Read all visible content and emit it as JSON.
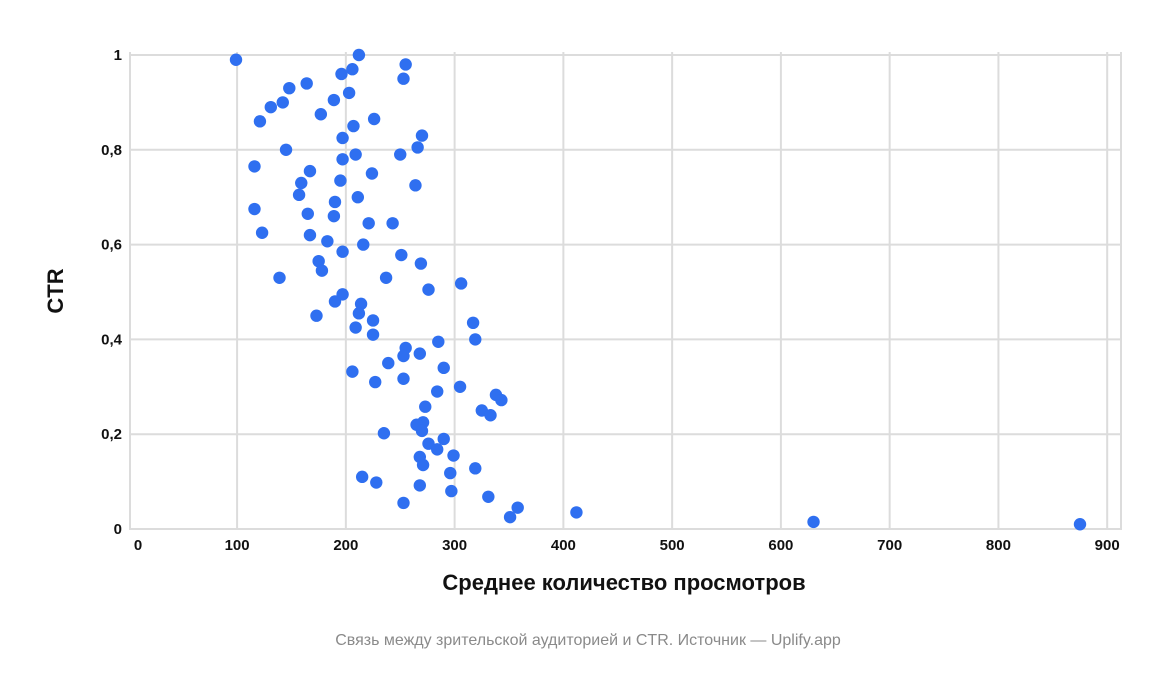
{
  "caption": "Связь между зрительской аудиторией и CTR. Источник — Uplify.app",
  "colors": {
    "point": "#2f6ff0",
    "grid": "#dcdcdc",
    "text": "#111111",
    "caption": "#8a8a8a"
  },
  "chart_data": {
    "type": "scatter",
    "title": "",
    "xlabel": "Среднее количество просмотров",
    "ylabel": "CTR",
    "xlim": [
      0,
      900
    ],
    "ylim": [
      0,
      1
    ],
    "grid": true,
    "x_ticks": [
      0,
      100,
      200,
      300,
      400,
      500,
      600,
      700,
      800,
      900
    ],
    "x_tick_labels": [
      "0",
      "100",
      "200",
      "300",
      "400",
      "500",
      "600",
      "700",
      "800",
      "900"
    ],
    "y_ticks": [
      0,
      0.2,
      0.4,
      0.6,
      0.8,
      1
    ],
    "y_tick_labels": [
      "0",
      "0,2",
      "0,4",
      "0,6",
      "0,8",
      "1"
    ],
    "series": [
      {
        "points": [
          [
            99,
            0.99
          ],
          [
            212,
            1.0
          ],
          [
            255,
            0.98
          ],
          [
            206,
            0.97
          ],
          [
            196,
            0.96
          ],
          [
            253,
            0.95
          ],
          [
            164,
            0.94
          ],
          [
            148,
            0.93
          ],
          [
            203,
            0.92
          ],
          [
            189,
            0.905
          ],
          [
            142,
            0.9
          ],
          [
            131,
            0.89
          ],
          [
            177,
            0.875
          ],
          [
            226,
            0.865
          ],
          [
            121,
            0.86
          ],
          [
            207,
            0.85
          ],
          [
            270,
            0.83
          ],
          [
            197,
            0.825
          ],
          [
            266,
            0.805
          ],
          [
            145,
            0.8
          ],
          [
            250,
            0.79
          ],
          [
            209,
            0.79
          ],
          [
            197,
            0.78
          ],
          [
            116,
            0.765
          ],
          [
            167,
            0.755
          ],
          [
            224,
            0.75
          ],
          [
            195,
            0.735
          ],
          [
            159,
            0.73
          ],
          [
            264,
            0.725
          ],
          [
            157,
            0.705
          ],
          [
            211,
            0.7
          ],
          [
            190,
            0.69
          ],
          [
            116,
            0.675
          ],
          [
            165,
            0.665
          ],
          [
            189,
            0.66
          ],
          [
            221,
            0.645
          ],
          [
            243,
            0.645
          ],
          [
            123,
            0.625
          ],
          [
            167,
            0.62
          ],
          [
            183,
            0.607
          ],
          [
            216,
            0.6
          ],
          [
            197,
            0.585
          ],
          [
            251,
            0.578
          ],
          [
            175,
            0.565
          ],
          [
            269,
            0.56
          ],
          [
            178,
            0.545
          ],
          [
            139,
            0.53
          ],
          [
            237,
            0.53
          ],
          [
            306,
            0.518
          ],
          [
            276,
            0.505
          ],
          [
            197,
            0.495
          ],
          [
            190,
            0.48
          ],
          [
            214,
            0.475
          ],
          [
            212,
            0.455
          ],
          [
            173,
            0.45
          ],
          [
            317,
            0.435
          ],
          [
            225,
            0.44
          ],
          [
            209,
            0.425
          ],
          [
            225,
            0.41
          ],
          [
            319,
            0.4
          ],
          [
            285,
            0.395
          ],
          [
            255,
            0.382
          ],
          [
            253,
            0.365
          ],
          [
            268,
            0.37
          ],
          [
            239,
            0.35
          ],
          [
            290,
            0.34
          ],
          [
            206,
            0.332
          ],
          [
            253,
            0.317
          ],
          [
            227,
            0.31
          ],
          [
            305,
            0.3
          ],
          [
            284,
            0.29
          ],
          [
            338,
            0.283
          ],
          [
            343,
            0.272
          ],
          [
            273,
            0.258
          ],
          [
            325,
            0.25
          ],
          [
            333,
            0.24
          ],
          [
            271,
            0.225
          ],
          [
            265,
            0.22
          ],
          [
            270,
            0.207
          ],
          [
            235,
            0.202
          ],
          [
            290,
            0.19
          ],
          [
            276,
            0.18
          ],
          [
            284,
            0.168
          ],
          [
            299,
            0.155
          ],
          [
            268,
            0.152
          ],
          [
            271,
            0.135
          ],
          [
            319,
            0.128
          ],
          [
            296,
            0.118
          ],
          [
            215,
            0.11
          ],
          [
            228,
            0.098
          ],
          [
            268,
            0.092
          ],
          [
            297,
            0.08
          ],
          [
            331,
            0.068
          ],
          [
            253,
            0.055
          ],
          [
            358,
            0.045
          ],
          [
            412,
            0.035
          ],
          [
            351,
            0.025
          ],
          [
            630,
            0.015
          ],
          [
            875,
            0.01
          ]
        ]
      }
    ]
  }
}
